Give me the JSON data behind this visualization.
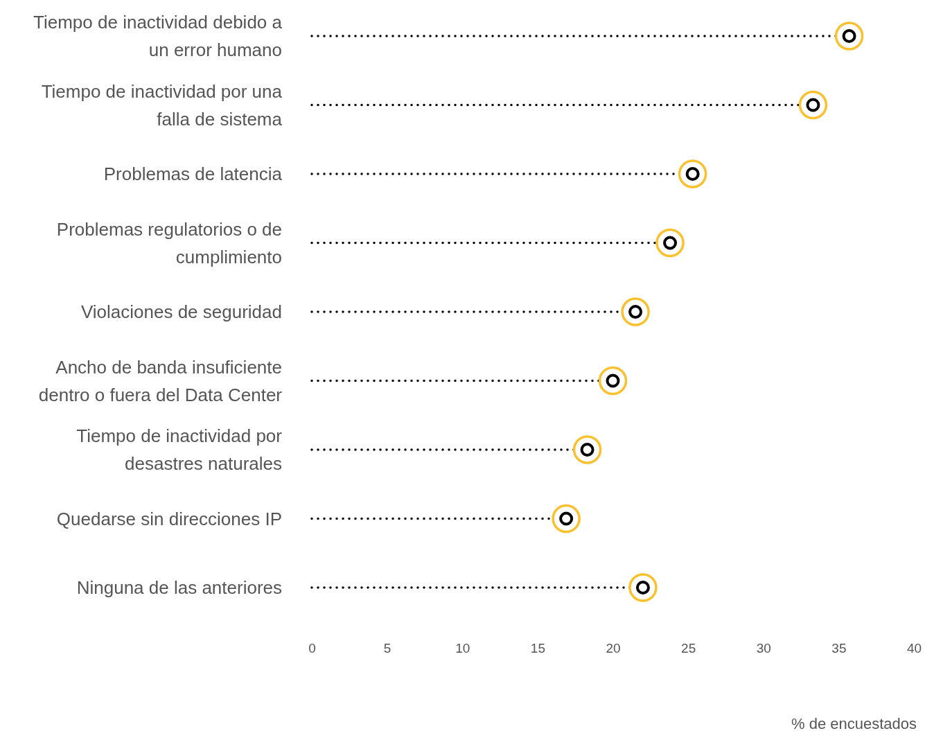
{
  "chart_data": {
    "type": "lollipop",
    "orientation": "horizontal",
    "xlabel": "% de encuestados",
    "categories": [
      "Tiempo de inactividad debido a un error humano",
      "Tiempo de inactividad por una falla de sistema",
      "Problemas de latencia",
      "Problemas regulatorios o de cumplimiento",
      "Violaciones de seguridad",
      "Ancho de banda insuficiente dentro o fuera del Data Center",
      "Tiempo de inactividad por desastres naturales",
      "Quedarse sin direcciones IP",
      "Ninguna de las anteriores"
    ],
    "series": [
      {
        "color": "#fbc02d",
        "values": [
          35.7,
          33.3,
          25.3,
          23.8,
          21.5,
          20.0,
          18.3,
          16.9,
          22.0
        ]
      }
    ],
    "xlim": [
      0,
      40
    ],
    "xticks": [
      0,
      5,
      10,
      15,
      20,
      25,
      30,
      35,
      40
    ],
    "marker": "circle",
    "line_style": "dotted"
  }
}
